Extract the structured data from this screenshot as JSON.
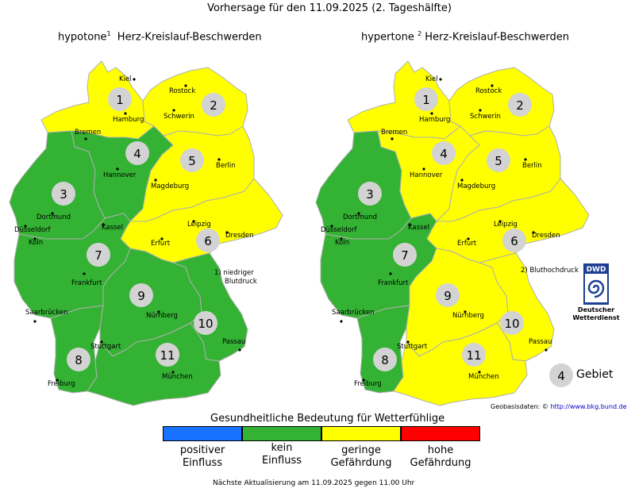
{
  "title": "Vorhersage für den 11.09.2025 (2. Tageshälfte)",
  "colors": {
    "positive": "#1773ff",
    "none": "#33b233",
    "low": "#ffff00",
    "high": "#ff0000",
    "badge": "#d3d3d3",
    "border": "#b0b0b0"
  },
  "maps": [
    {
      "prefix": "hypotone",
      "sup": "1",
      "suffix": "Herz-Kreislauf-Beschwerden",
      "note_lines": [
        "1) niedriger",
        "Blutdruck"
      ],
      "region_levels": {
        "1": "low",
        "2": "low",
        "3": "none",
        "4": "none",
        "5": "low",
        "6": "low",
        "7": "none",
        "8": "none",
        "9": "none",
        "10": "none",
        "11": "none"
      }
    },
    {
      "prefix": "hypertone",
      "sup": "2",
      "suffix": "Herz-Kreislauf-Beschwerden",
      "note_lines": [
        "2) Bluthochdruck"
      ],
      "region_levels": {
        "1": "low",
        "2": "low",
        "3": "none",
        "4": "low",
        "5": "low",
        "6": "low",
        "7": "none",
        "8": "none",
        "9": "low",
        "10": "low",
        "11": "low"
      }
    }
  ],
  "cities": [
    "Kiel",
    "Rostock",
    "Hamburg",
    "Schwerin",
    "Bremen",
    "Hannover",
    "Berlin",
    "Magdeburg",
    "Dortmund",
    "Düsseldorf",
    "Köln",
    "Kassel",
    "Leipzig",
    "Dresden",
    "Erfurt",
    "Frankfurt",
    "Saarbrücken",
    "Nürnberg",
    "Stuttgart",
    "Passau",
    "Freiburg",
    "München"
  ],
  "legend": {
    "title": "Gesundheitliche Bedeutung für Wetterfühlige",
    "items": [
      {
        "line1": "positiver",
        "line2": "Einfluss",
        "level": "positive"
      },
      {
        "line1": "kein",
        "line2": "Einfluss",
        "level": "none"
      },
      {
        "line1": "geringe",
        "line2": "Gefährdung",
        "level": "low"
      },
      {
        "line1": "hohe",
        "line2": "Gefährdung",
        "level": "high"
      }
    ],
    "key_number": "4",
    "key_label": "Gebiet"
  },
  "source": {
    "label": "Geobasisdaten: ©",
    "link": "http://www.bkg.bund.de"
  },
  "logo": {
    "text": "DWD",
    "caption_line1": "Deutscher",
    "caption_line2": "Wetterdienst"
  },
  "footer": "Nächste Aktualisierung am 11.09.2025 gegen 11.00 Uhr"
}
